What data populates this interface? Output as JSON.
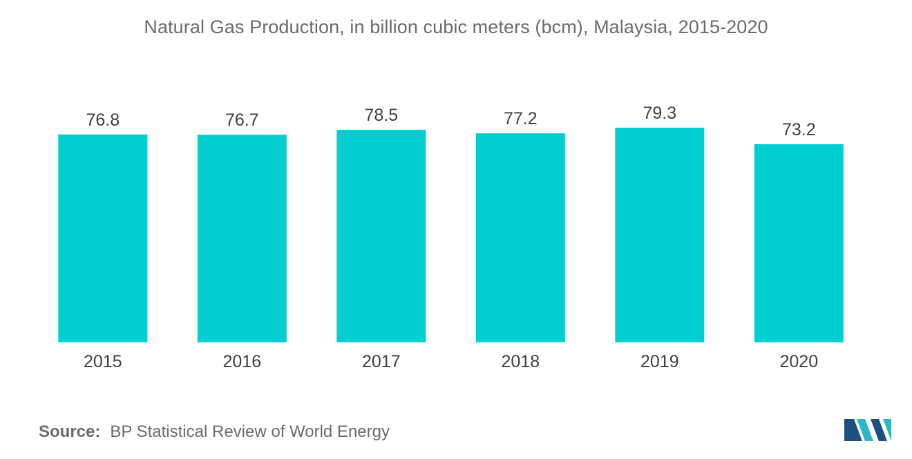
{
  "chart_data": {
    "type": "bar",
    "title": "Natural Gas Production, in billion cubic meters (bcm), Malaysia, 2015-2020",
    "categories": [
      "2015",
      "2016",
      "2017",
      "2018",
      "2019",
      "2020"
    ],
    "values": [
      76.8,
      76.7,
      78.5,
      77.2,
      79.3,
      73.2
    ],
    "data_labels": [
      "76.8",
      "76.7",
      "78.5",
      "77.2",
      "79.3",
      "73.2"
    ],
    "xlabel": "",
    "ylabel": "",
    "ylim": [
      0,
      79.3
    ],
    "grid": false,
    "bar_color": "#00ced1"
  },
  "footer": {
    "source_key": "Source:",
    "source_text": "BP Statistical Review of World Energy"
  },
  "logo": {
    "icon": "mordor-intelligence-logo-icon",
    "colors": [
      "#1e4f80",
      "#2cb6c7"
    ]
  }
}
